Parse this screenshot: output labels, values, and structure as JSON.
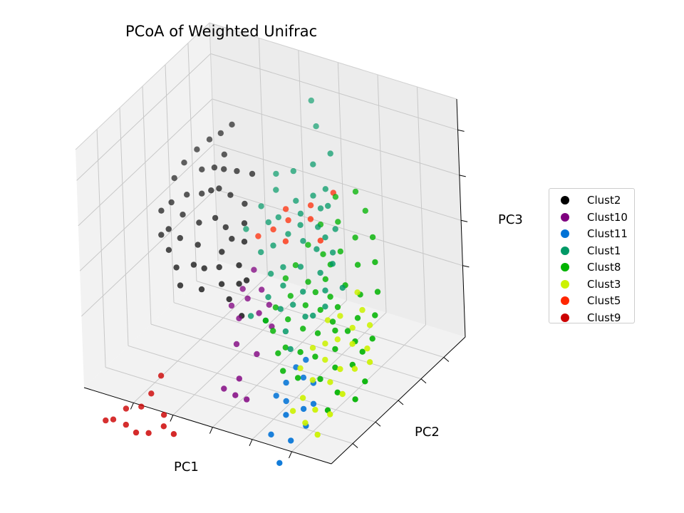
{
  "chart_data": {
    "type": "scatter",
    "projection": "3d",
    "title": "PCoA of Weighted Unifrac",
    "xlabel": "PC1",
    "ylabel": "PC2",
    "zlabel": "PC3",
    "tick_labels_shown": false,
    "grid": true,
    "legend": "outside-right",
    "series": [
      {
        "name": "Clust2",
        "color": "#000000",
        "points": [
          [
            0.81,
            0.8,
            0.74
          ],
          [
            0.84,
            0.77,
            0.71
          ],
          [
            0.87,
            0.74,
            0.69
          ],
          [
            0.8,
            0.72,
            0.66
          ],
          [
            0.77,
            0.66,
            0.64
          ],
          [
            0.7,
            0.74,
            0.6
          ],
          [
            0.74,
            0.7,
            0.62
          ],
          [
            0.86,
            0.66,
            0.61
          ],
          [
            0.9,
            0.7,
            0.66
          ],
          [
            0.92,
            0.64,
            0.63
          ],
          [
            0.78,
            0.58,
            0.59
          ],
          [
            0.73,
            0.63,
            0.56
          ],
          [
            0.83,
            0.6,
            0.55
          ],
          [
            0.88,
            0.58,
            0.54
          ],
          [
            0.94,
            0.6,
            0.58
          ],
          [
            0.69,
            0.66,
            0.52
          ],
          [
            0.75,
            0.55,
            0.5
          ],
          [
            0.8,
            0.52,
            0.48
          ],
          [
            0.86,
            0.51,
            0.5
          ],
          [
            0.91,
            0.52,
            0.53
          ],
          [
            0.72,
            0.57,
            0.46
          ],
          [
            0.66,
            0.6,
            0.48
          ],
          [
            0.84,
            0.45,
            0.44
          ],
          [
            0.78,
            0.47,
            0.42
          ],
          [
            0.7,
            0.5,
            0.4
          ],
          [
            0.88,
            0.44,
            0.47
          ],
          [
            0.93,
            0.48,
            0.51
          ],
          [
            0.76,
            0.4,
            0.38
          ],
          [
            0.82,
            0.38,
            0.36
          ],
          [
            0.68,
            0.54,
            0.44
          ],
          [
            0.64,
            0.56,
            0.43
          ],
          [
            0.62,
            0.48,
            0.38
          ],
          [
            0.6,
            0.44,
            0.33
          ],
          [
            0.86,
            0.4,
            0.41
          ],
          [
            0.74,
            0.44,
            0.35
          ],
          [
            0.69,
            0.46,
            0.36
          ],
          [
            0.79,
            0.35,
            0.31
          ],
          [
            0.72,
            0.38,
            0.3
          ],
          [
            0.66,
            0.42,
            0.32
          ],
          [
            0.9,
            0.42,
            0.45
          ],
          [
            0.77,
            0.62,
            0.58
          ],
          [
            0.82,
            0.68,
            0.62
          ],
          [
            0.56,
            0.38,
            0.24
          ],
          [
            0.58,
            0.46,
            0.34
          ],
          [
            0.62,
            0.4,
            0.28
          ]
        ]
      },
      {
        "name": "Clust10",
        "color": "#7f007f",
        "points": [
          [
            0.56,
            0.48,
            0.38
          ],
          [
            0.58,
            0.43,
            0.32
          ],
          [
            0.55,
            0.41,
            0.3
          ],
          [
            0.52,
            0.46,
            0.32
          ],
          [
            0.6,
            0.38,
            0.27
          ],
          [
            0.56,
            0.36,
            0.24
          ],
          [
            0.5,
            0.4,
            0.26
          ],
          [
            0.48,
            0.44,
            0.28
          ],
          [
            0.54,
            0.3,
            0.17
          ],
          [
            0.45,
            0.4,
            0.22
          ],
          [
            0.47,
            0.32,
            0.14
          ],
          [
            0.5,
            0.24,
            0.07
          ],
          [
            0.45,
            0.2,
            0.02
          ],
          [
            0.49,
            0.19,
            0.03
          ],
          [
            0.53,
            0.18,
            0.05
          ]
        ]
      },
      {
        "name": "Clust11",
        "color": "#0072d6",
        "points": [
          [
            0.22,
            0.28,
            0.12
          ],
          [
            0.26,
            0.28,
            0.13
          ],
          [
            0.3,
            0.3,
            0.15
          ],
          [
            0.27,
            0.32,
            0.18
          ],
          [
            0.2,
            0.24,
            0.06
          ],
          [
            0.23,
            0.22,
            0.04
          ],
          [
            0.2,
            0.18,
            0.0
          ],
          [
            0.3,
            0.22,
            0.05
          ],
          [
            0.34,
            0.22,
            0.06
          ],
          [
            0.28,
            0.18,
            0.02
          ],
          [
            0.23,
            0.12,
            -0.04
          ],
          [
            0.31,
            0.12,
            -0.04
          ],
          [
            0.24,
            0.05,
            -0.1
          ],
          [
            0.32,
            0.26,
            0.1
          ]
        ]
      },
      {
        "name": "Clust1",
        "color": "#009966",
        "points": [
          [
            0.55,
            0.92,
            0.86
          ],
          [
            0.5,
            0.86,
            0.8
          ],
          [
            0.4,
            0.78,
            0.76
          ],
          [
            0.45,
            0.74,
            0.72
          ],
          [
            0.38,
            0.7,
            0.66
          ],
          [
            0.52,
            0.72,
            0.68
          ],
          [
            0.58,
            0.7,
            0.66
          ],
          [
            0.35,
            0.66,
            0.62
          ],
          [
            0.42,
            0.68,
            0.63
          ],
          [
            0.48,
            0.66,
            0.6
          ],
          [
            0.3,
            0.62,
            0.56
          ],
          [
            0.36,
            0.6,
            0.56
          ],
          [
            0.44,
            0.62,
            0.58
          ],
          [
            0.52,
            0.6,
            0.55
          ],
          [
            0.6,
            0.62,
            0.56
          ],
          [
            0.28,
            0.56,
            0.5
          ],
          [
            0.34,
            0.55,
            0.5
          ],
          [
            0.4,
            0.56,
            0.51
          ],
          [
            0.46,
            0.56,
            0.52
          ],
          [
            0.55,
            0.58,
            0.53
          ],
          [
            0.3,
            0.5,
            0.44
          ],
          [
            0.38,
            0.5,
            0.44
          ],
          [
            0.44,
            0.48,
            0.43
          ],
          [
            0.5,
            0.52,
            0.48
          ],
          [
            0.26,
            0.46,
            0.4
          ],
          [
            0.34,
            0.44,
            0.38
          ],
          [
            0.42,
            0.44,
            0.38
          ],
          [
            0.62,
            0.54,
            0.5
          ],
          [
            0.36,
            0.4,
            0.34
          ],
          [
            0.3,
            0.38,
            0.32
          ],
          [
            0.24,
            0.42,
            0.36
          ],
          [
            0.4,
            0.38,
            0.32
          ],
          [
            0.46,
            0.4,
            0.34
          ],
          [
            0.48,
            0.46,
            0.4
          ],
          [
            0.32,
            0.58,
            0.54
          ],
          [
            0.26,
            0.52,
            0.48
          ],
          [
            0.2,
            0.48,
            0.42
          ],
          [
            0.42,
            0.58,
            0.56
          ],
          [
            0.28,
            0.4,
            0.32
          ],
          [
            0.36,
            0.34,
            0.26
          ],
          [
            0.32,
            0.3,
            0.22
          ],
          [
            0.38,
            0.66,
            0.6
          ],
          [
            0.56,
            0.66,
            0.62
          ],
          [
            0.54,
            0.5,
            0.45
          ],
          [
            0.5,
            0.34,
            0.28
          ],
          [
            0.44,
            0.34,
            0.28
          ]
        ]
      },
      {
        "name": "Clust8",
        "color": "#00b300",
        "points": [
          [
            0.22,
            0.7,
            0.62
          ],
          [
            0.28,
            0.74,
            0.66
          ],
          [
            0.34,
            0.7,
            0.64
          ],
          [
            0.16,
            0.64,
            0.56
          ],
          [
            0.22,
            0.62,
            0.55
          ],
          [
            0.3,
            0.64,
            0.58
          ],
          [
            0.36,
            0.62,
            0.56
          ],
          [
            0.12,
            0.58,
            0.5
          ],
          [
            0.18,
            0.56,
            0.48
          ],
          [
            0.26,
            0.58,
            0.5
          ],
          [
            0.32,
            0.56,
            0.48
          ],
          [
            0.38,
            0.56,
            0.5
          ],
          [
            0.08,
            0.52,
            0.42
          ],
          [
            0.14,
            0.5,
            0.4
          ],
          [
            0.2,
            0.5,
            0.42
          ],
          [
            0.28,
            0.5,
            0.42
          ],
          [
            0.34,
            0.48,
            0.4
          ],
          [
            0.4,
            0.5,
            0.44
          ],
          [
            0.06,
            0.46,
            0.36
          ],
          [
            0.12,
            0.44,
            0.34
          ],
          [
            0.2,
            0.44,
            0.36
          ],
          [
            0.26,
            0.42,
            0.34
          ],
          [
            0.32,
            0.42,
            0.34
          ],
          [
            0.38,
            0.42,
            0.36
          ],
          [
            0.04,
            0.4,
            0.3
          ],
          [
            0.1,
            0.38,
            0.28
          ],
          [
            0.18,
            0.38,
            0.3
          ],
          [
            0.24,
            0.36,
            0.28
          ],
          [
            0.3,
            0.36,
            0.28
          ],
          [
            0.36,
            0.36,
            0.3
          ],
          [
            0.42,
            0.38,
            0.32
          ],
          [
            0.08,
            0.32,
            0.22
          ],
          [
            0.14,
            0.3,
            0.2
          ],
          [
            0.22,
            0.3,
            0.22
          ],
          [
            0.28,
            0.3,
            0.22
          ],
          [
            0.34,
            0.3,
            0.22
          ],
          [
            0.4,
            0.32,
            0.26
          ],
          [
            0.02,
            0.3,
            0.18
          ],
          [
            0.1,
            0.24,
            0.14
          ],
          [
            0.18,
            0.26,
            0.16
          ],
          [
            0.26,
            0.24,
            0.15
          ],
          [
            0.32,
            0.24,
            0.16
          ],
          [
            0.16,
            0.34,
            0.25
          ],
          [
            0.24,
            0.46,
            0.38
          ],
          [
            0.3,
            0.46,
            0.38
          ],
          [
            0.42,
            0.46,
            0.4
          ],
          [
            0.04,
            0.26,
            0.12
          ],
          [
            0.12,
            0.2,
            0.08
          ],
          [
            0.36,
            0.28,
            0.2
          ],
          [
            0.44,
            0.34,
            0.28
          ],
          [
            0.2,
            0.4,
            0.32
          ],
          [
            0.28,
            0.54,
            0.46
          ],
          [
            0.06,
            0.36,
            0.26
          ],
          [
            0.14,
            0.4,
            0.3
          ]
        ]
      },
      {
        "name": "Clust3",
        "color": "#ccf200",
        "points": [
          [
            0.1,
            0.44,
            0.38
          ],
          [
            0.14,
            0.48,
            0.42
          ],
          [
            0.06,
            0.42,
            0.34
          ],
          [
            0.12,
            0.4,
            0.32
          ],
          [
            0.18,
            0.42,
            0.34
          ],
          [
            0.04,
            0.36,
            0.28
          ],
          [
            0.1,
            0.36,
            0.28
          ],
          [
            0.16,
            0.36,
            0.28
          ],
          [
            0.22,
            0.4,
            0.32
          ],
          [
            0.06,
            0.3,
            0.22
          ],
          [
            0.12,
            0.3,
            0.2
          ],
          [
            0.18,
            0.3,
            0.22
          ],
          [
            0.24,
            0.32,
            0.24
          ],
          [
            0.08,
            0.24,
            0.14
          ],
          [
            0.14,
            0.26,
            0.16
          ],
          [
            0.2,
            0.24,
            0.16
          ],
          [
            0.26,
            0.26,
            0.18
          ],
          [
            0.1,
            0.18,
            0.08
          ],
          [
            0.16,
            0.18,
            0.08
          ],
          [
            0.22,
            0.2,
            0.1
          ],
          [
            0.12,
            0.12,
            0.02
          ],
          [
            0.18,
            0.14,
            0.04
          ],
          [
            0.24,
            0.16,
            0.06
          ],
          [
            0.2,
            0.34,
            0.26
          ],
          [
            0.02,
            0.34,
            0.24
          ]
        ]
      },
      {
        "name": "Clust5",
        "color": "#ff2600",
        "points": [
          [
            0.36,
            0.72,
            0.64
          ],
          [
            0.42,
            0.66,
            0.6
          ],
          [
            0.48,
            0.6,
            0.55
          ],
          [
            0.52,
            0.56,
            0.52
          ],
          [
            0.34,
            0.58,
            0.52
          ],
          [
            0.4,
            0.62,
            0.57
          ],
          [
            0.46,
            0.54,
            0.5
          ],
          [
            0.5,
            0.62,
            0.58
          ],
          [
            0.56,
            0.52,
            0.5
          ]
        ]
      },
      {
        "name": "Clust9",
        "color": "#cc0000",
        "points": [
          [
            0.74,
            0.1,
            0.08
          ],
          [
            0.76,
            0.06,
            0.02
          ],
          [
            0.78,
            0.02,
            -0.02
          ],
          [
            0.7,
            0.04,
            -0.04
          ],
          [
            0.68,
            0.0,
            -0.06
          ],
          [
            0.72,
            -0.04,
            -0.08
          ],
          [
            0.76,
            -0.06,
            -0.08
          ],
          [
            0.8,
            -0.06,
            -0.06
          ],
          [
            0.84,
            -0.08,
            -0.04
          ],
          [
            0.86,
            -0.1,
            -0.04
          ],
          [
            0.82,
            -0.02,
            -0.02
          ],
          [
            0.64,
            0.0,
            -0.08
          ]
        ]
      }
    ]
  }
}
